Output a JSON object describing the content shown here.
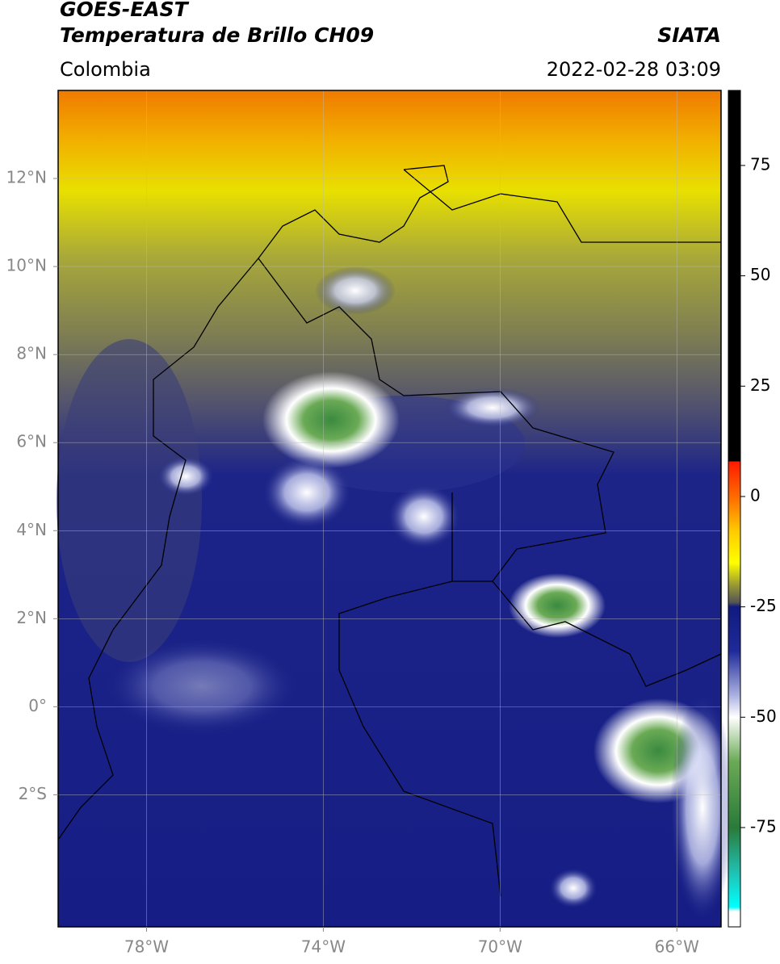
{
  "header": {
    "title": "GOES-EAST",
    "subtitle": "Temperatura de Brillo CH09",
    "source": "SIATA",
    "region": "Colombia",
    "datetime": "2022-02-28 03:09"
  },
  "map": {
    "xlim": [
      -80,
      -65
    ],
    "ylim": [
      -5,
      14
    ],
    "xticks": [
      {
        "value": -78,
        "label": "78°W"
      },
      {
        "value": -74,
        "label": "74°W"
      },
      {
        "value": -70,
        "label": "70°W"
      },
      {
        "value": -66,
        "label": "66°W"
      }
    ],
    "yticks": [
      {
        "value": 12,
        "label": "12°N"
      },
      {
        "value": 10,
        "label": "10°N"
      },
      {
        "value": 8,
        "label": "8°N"
      },
      {
        "value": 6,
        "label": "6°N"
      },
      {
        "value": 4,
        "label": "4°N"
      },
      {
        "value": 2,
        "label": "2°N"
      },
      {
        "value": 0,
        "label": "0°"
      },
      {
        "value": -2,
        "label": "2°S"
      }
    ],
    "grid": true
  },
  "colorbar": {
    "clim": [
      -97.5,
      92
    ],
    "ticks": [
      75,
      50,
      25,
      0,
      -25,
      -50,
      -75
    ],
    "colormap": [
      {
        "value": 92,
        "color": "#000000"
      },
      {
        "value": 8,
        "color": "#000000"
      },
      {
        "value": 7.9,
        "color": "#ff1a00"
      },
      {
        "value": 0,
        "color": "#ff6a00"
      },
      {
        "value": -8,
        "color": "#ffcc00"
      },
      {
        "value": -15,
        "color": "#ffff00"
      },
      {
        "value": -20,
        "color": "#9a9a33"
      },
      {
        "value": -24,
        "color": "#555555"
      },
      {
        "value": -25,
        "color": "#101a80"
      },
      {
        "value": -35,
        "color": "#1f2a9a"
      },
      {
        "value": -45,
        "color": "#aab0e0"
      },
      {
        "value": -50,
        "color": "#ffffff"
      },
      {
        "value": -60,
        "color": "#6aaa55"
      },
      {
        "value": -75,
        "color": "#2a7a3a"
      },
      {
        "value": -85,
        "color": "#20c0b0"
      },
      {
        "value": -93,
        "color": "#00ffff"
      },
      {
        "value": -94,
        "color": "#ffffff"
      },
      {
        "value": -97.5,
        "color": "#ffffff"
      }
    ]
  }
}
